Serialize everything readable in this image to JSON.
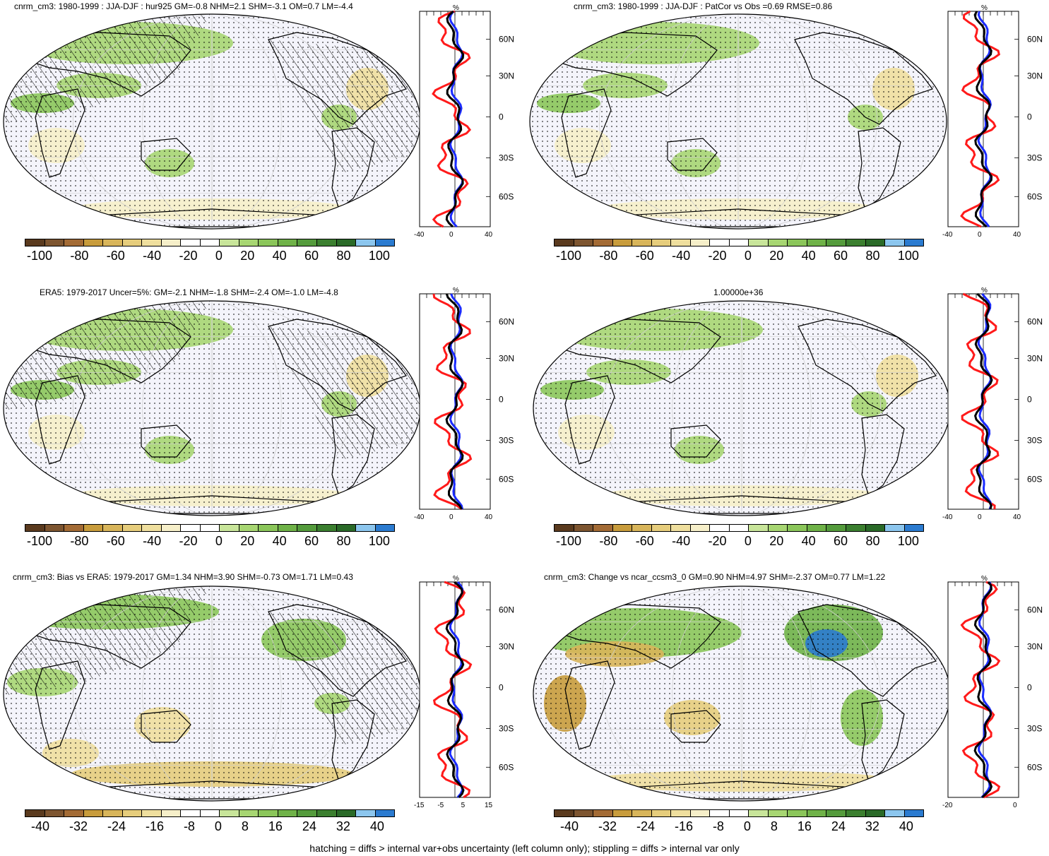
{
  "colors": {
    "palette": [
      "#5a3a1e",
      "#7d5530",
      "#a36b35",
      "#c89c3c",
      "#d8b55a",
      "#e6cd7c",
      "#efdf9e",
      "#f6efc9",
      "#f4f4fb",
      "#ffffff",
      "#c8e59a",
      "#a7d672",
      "#8bc65a",
      "#6fb248",
      "#549b3c",
      "#3b7f2f",
      "#2a6a28",
      "#8cc6ee",
      "#2b7bd0"
    ],
    "red_line": "#ff1a1a",
    "blue_line": "#1a2bff",
    "black_line": "#000000"
  },
  "panels": [
    {
      "title": "cnrm_cm3: 1980-1999 : JJA-DJF : hur925 GM=-0.8 NHM=2.1 SHM=-3.1 OM=0.7 LM=-4.4",
      "cbar_labels": [
        "-100",
        "-80",
        "-60",
        "-40",
        "-20",
        "0",
        "20",
        "40",
        "60",
        "80",
        "100"
      ],
      "side_title": "%",
      "side_x": [
        "-40",
        "0",
        "40"
      ],
      "lat_labels": [
        "60N",
        "30N",
        "0",
        "30S",
        "60S"
      ]
    },
    {
      "title": "cnrm_cm3: 1980-1999 : JJA-DJF : PatCor vs Obs =0.69 RMSE=0.86",
      "cbar_labels": [
        "-100",
        "-80",
        "-60",
        "-40",
        "-20",
        "0",
        "20",
        "40",
        "60",
        "80",
        "100"
      ],
      "side_title": "%",
      "side_x": [
        "-40",
        "0",
        "40"
      ],
      "lat_labels": [
        "60N",
        "30N",
        "0",
        "30S",
        "60S"
      ]
    },
    {
      "title": "ERA5: 1979-2017 Uncer=5%: GM=-2.1 NHM=-1.8 SHM=-2.4 OM=-1.0 LM=-4.8",
      "cbar_labels": [
        "-100",
        "-80",
        "-60",
        "-40",
        "-20",
        "0",
        "20",
        "40",
        "60",
        "80",
        "100"
      ],
      "side_title": "%",
      "side_x": [
        "-40",
        "0",
        "40"
      ],
      "lat_labels": [
        "60N",
        "30N",
        "0",
        "30S",
        "60S"
      ]
    },
    {
      "title": "1.00000e+36",
      "cbar_labels": [
        "-100",
        "-80",
        "-60",
        "-40",
        "-20",
        "0",
        "20",
        "40",
        "60",
        "80",
        "100"
      ],
      "side_title": "%",
      "side_x": [
        "-40",
        "0",
        "40"
      ],
      "lat_labels": [
        "60N",
        "30N",
        "0",
        "30S",
        "60S"
      ]
    },
    {
      "title": "cnrm_cm3: Bias vs ERA5: 1979-2017 GM=1.34 NHM=3.90 SHM=-0.73 OM=1.71 LM=0.43",
      "cbar_labels": [
        "-40",
        "-32",
        "-24",
        "-16",
        "-8",
        "0",
        "8",
        "16",
        "24",
        "32",
        "40"
      ],
      "side_title": "%",
      "side_x": [
        "-15",
        "-5",
        "5",
        "15"
      ],
      "lat_labels": [
        "60N",
        "30N",
        "0",
        "30S",
        "60S"
      ]
    },
    {
      "title": "cnrm_cm3: Change vs ncar_ccsm3_0 GM=0.90 NHM=4.97 SHM=-2.37 OM=0.77 LM=1.22",
      "cbar_labels": [
        "-40",
        "-32",
        "-24",
        "-16",
        "-8",
        "0",
        "8",
        "16",
        "24",
        "32",
        "40"
      ],
      "side_title": "%",
      "side_x": [
        "-20",
        "0"
      ],
      "lat_labels": [
        "60N",
        "30N",
        "0",
        "30S",
        "60S"
      ]
    }
  ],
  "footnote": "hatching = diffs > internal var+obs uncertainty (left column only); stippling = diffs > internal var only"
}
